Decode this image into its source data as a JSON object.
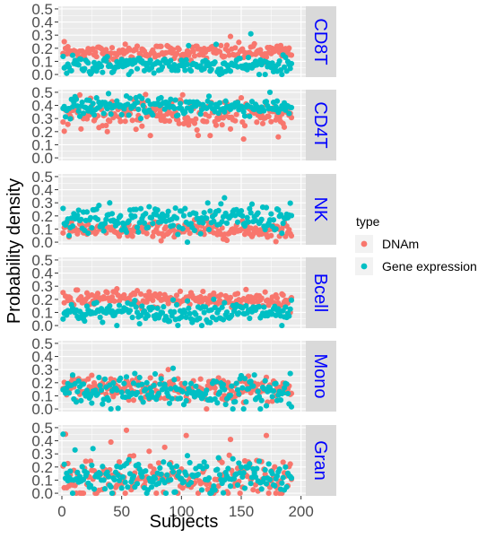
{
  "chart_data": {
    "type": "scatter",
    "xlabel": "Subjects",
    "ylabel": "Probability density",
    "xlim": [
      -3,
      204
    ],
    "ylim": [
      -0.02,
      0.52
    ],
    "x_ticks": [
      "0",
      "50",
      "100",
      "150",
      "200"
    ],
    "y_ticks": [
      "0.0",
      "0.1",
      "0.2",
      "0.3",
      "0.4",
      "0.5"
    ],
    "grid": true,
    "legend_position": "right",
    "legend": {
      "title": "type",
      "entries": [
        {
          "name": "DNAm",
          "color": "#F8766D"
        },
        {
          "name": "Gene expression",
          "color": "#00BFC4"
        }
      ]
    },
    "strip_text_color": "#0000FF",
    "n_subjects": 192,
    "panels": [
      {
        "label": "CD8T",
        "series": [
          {
            "name": "DNAm",
            "mean": 0.17,
            "sd": 0.03,
            "outliers": [
              [
                140,
                0.29
              ],
              [
                1,
                0.25
              ],
              [
                168,
                0.09
              ]
            ]
          },
          {
            "name": "Gene expression",
            "mean": 0.07,
            "sd": 0.035,
            "outliers": [
              [
                157,
                0.31
              ],
              [
                128,
                0.23
              ],
              [
                105,
                0.22
              ]
            ]
          }
        ]
      },
      {
        "label": "CD4T",
        "series": [
          {
            "name": "DNAm",
            "mean": 0.33,
            "sd": 0.055,
            "outliers": [
              [
                100,
                0.48
              ],
              [
                37,
                0.2
              ],
              [
                73,
                0.17
              ],
              [
                180,
                0.16
              ],
              [
                123,
                0.17
              ]
            ]
          },
          {
            "name": "Gene expression",
            "mean": 0.39,
            "sd": 0.035,
            "outliers": [
              [
                38,
                0.49
              ],
              [
                122,
                0.47
              ],
              [
                80,
                0.45
              ]
            ]
          }
        ]
      },
      {
        "label": "NK",
        "series": [
          {
            "name": "DNAm",
            "mean": 0.09,
            "sd": 0.03,
            "outliers": [
              [
                110,
                0.17
              ],
              [
                125,
                0.2
              ]
            ]
          },
          {
            "name": "Gene expression",
            "mean": 0.18,
            "sd": 0.05,
            "outliers": [
              [
                30,
                0.28
              ],
              [
                72,
                0.27
              ],
              [
                158,
                0.29
              ],
              [
                5,
                0.05
              ]
            ]
          }
        ]
      },
      {
        "label": "Bcell",
        "series": [
          {
            "name": "DNAm",
            "mean": 0.2,
            "sd": 0.035,
            "outliers": [
              [
                45,
                0.28
              ],
              [
                107,
                0.25
              ],
              [
                10,
                0.1
              ]
            ]
          },
          {
            "name": "Gene expression",
            "mean": 0.1,
            "sd": 0.04,
            "outliers": [
              [
                126,
                0.2
              ],
              [
                60,
                0.19
              ],
              [
                183,
                0.0
              ]
            ]
          }
        ]
      },
      {
        "label": "Mono",
        "series": [
          {
            "name": "DNAm",
            "mean": 0.15,
            "sd": 0.045,
            "outliers": [
              [
                88,
                0.3
              ],
              [
                155,
                0.25
              ],
              [
                120,
                0.0
              ]
            ]
          },
          {
            "name": "Gene expression",
            "mean": 0.13,
            "sd": 0.06,
            "outliers": [
              [
                92,
                0.31
              ],
              [
                190,
                0.27
              ],
              [
                60,
                0.27
              ],
              [
                30,
                0.24
              ]
            ]
          }
        ]
      },
      {
        "label": "Gran",
        "series": [
          {
            "name": "DNAm",
            "mean": 0.11,
            "sd": 0.08,
            "outliers": [
              [
                53,
                0.48
              ],
              [
                2,
                0.45
              ],
              [
                103,
                0.44
              ],
              [
                170,
                0.44
              ],
              [
                140,
                0.41
              ],
              [
                40,
                0.39
              ],
              [
                85,
                0.35
              ],
              [
                148,
                0.0
              ]
            ]
          },
          {
            "name": "Gene expression",
            "mean": 0.13,
            "sd": 0.06,
            "outliers": [
              [
                0,
                0.45
              ],
              [
                25,
                0.34
              ],
              [
                10,
                0.33
              ],
              [
                130,
                0.27
              ]
            ]
          }
        ]
      }
    ]
  }
}
